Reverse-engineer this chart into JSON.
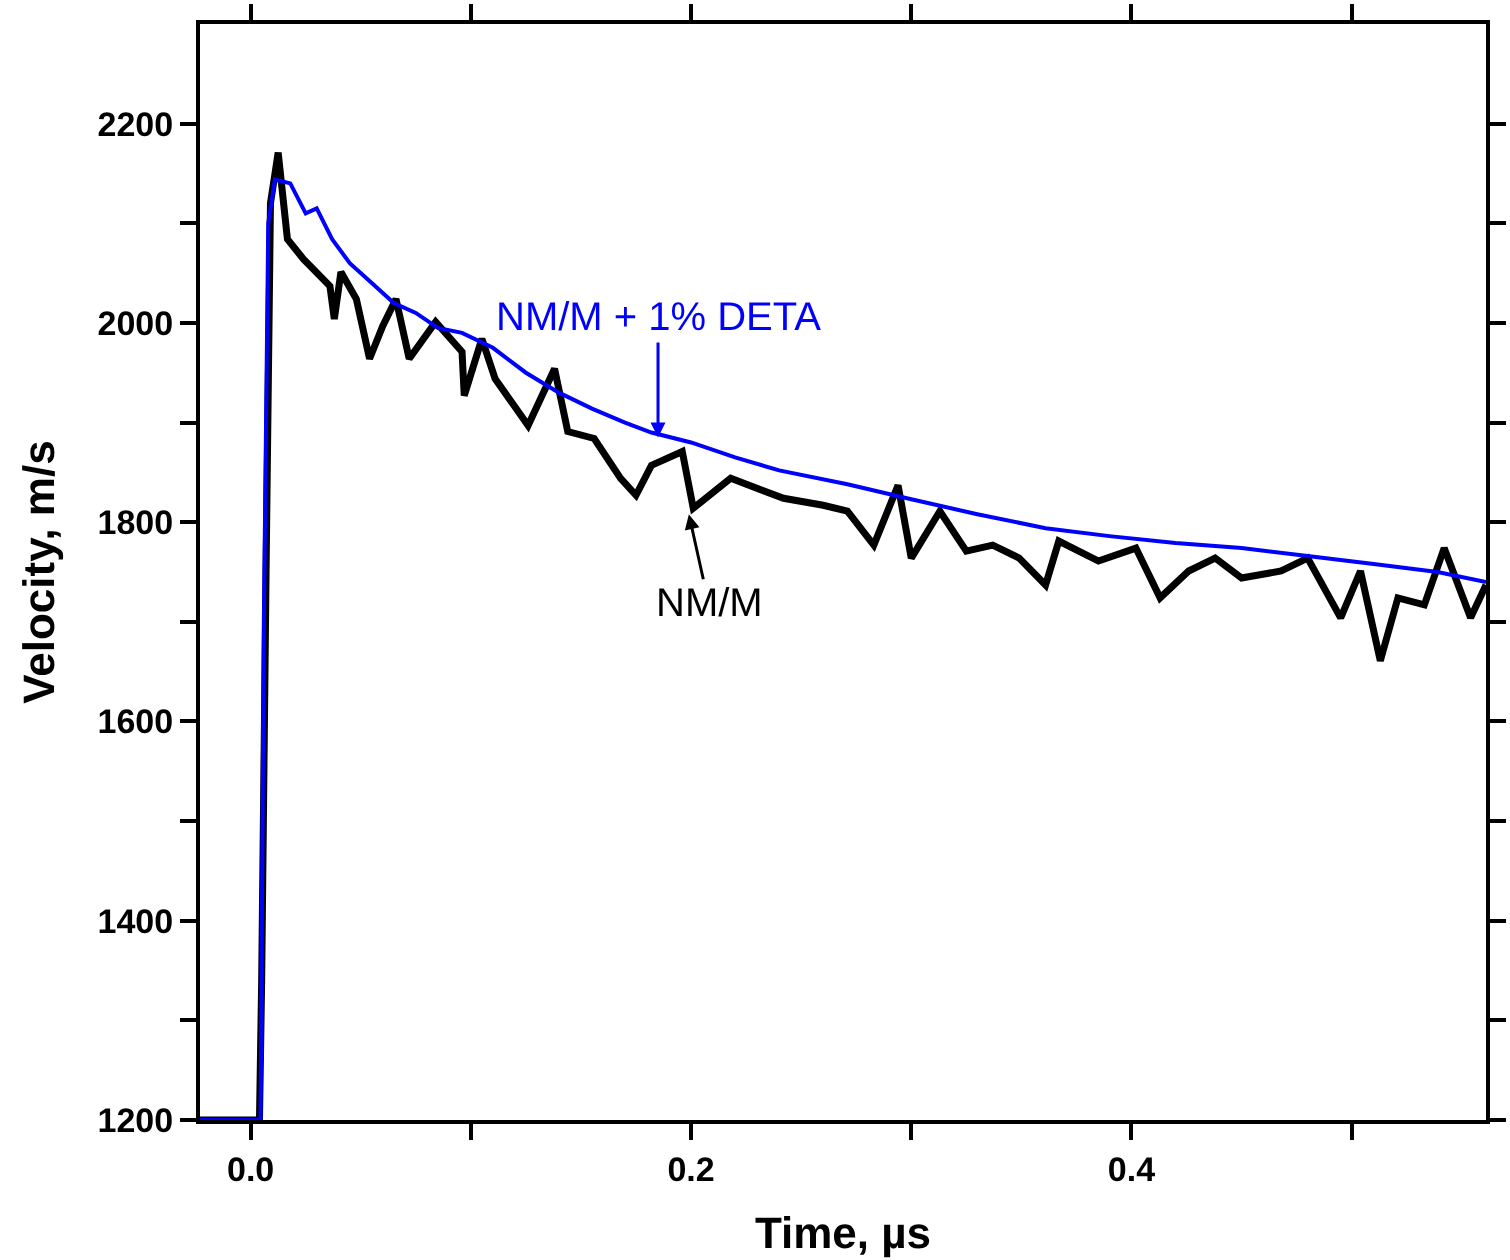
{
  "chart_data": {
    "type": "line",
    "xlabel": "Time, µs",
    "ylabel": "Velocity, m/s",
    "xlim": [
      -0.023,
      0.561
    ],
    "ylim": [
      1200,
      2300
    ],
    "xticks": [
      {
        "value": 0,
        "label": "0.0"
      },
      {
        "value": 0.1,
        "label": null
      },
      {
        "value": 0.2,
        "label": "0.2"
      },
      {
        "value": 0.3,
        "label": null
      },
      {
        "value": 0.4,
        "label": "0.4"
      },
      {
        "value": 0.5,
        "label": null
      }
    ],
    "yticks": [
      1200,
      {
        "value": 1300,
        "label": null
      },
      1400,
      {
        "value": 1500,
        "label": null
      },
      1600,
      {
        "value": 1700,
        "label": null
      },
      1800,
      {
        "value": 1900,
        "label": null
      },
      2000,
      {
        "value": 2100,
        "label": null
      },
      2200
    ],
    "marker": "none",
    "line_style": "solid",
    "series": [
      {
        "color": "#000000",
        "x": [
          -0.023,
          0.004,
          0.005,
          0.007,
          0.009,
          0.0125,
          0.0167,
          0.024,
          0.036,
          0.038,
          0.041,
          0.048,
          0.054,
          0.06,
          0.066,
          0.072,
          0.084,
          0.096,
          0.097,
          0.105,
          0.111,
          0.126,
          0.138,
          0.144,
          0.156,
          0.168,
          0.175,
          0.182,
          0.196,
          0.201,
          0.218,
          0.242,
          0.26,
          0.271,
          0.283,
          0.294,
          0.3,
          0.313,
          0.325,
          0.337,
          0.349,
          0.361,
          0.367,
          0.385,
          0.402,
          0.413,
          0.426,
          0.438,
          0.45,
          0.468,
          0.48,
          0.495,
          0.504,
          0.513,
          0.521,
          0.533,
          0.542,
          0.554,
          0.561
        ],
        "values": [
          1200,
          1200,
          1340,
          1750,
          2120,
          2171,
          2084,
          2064,
          2037,
          2004,
          2051,
          2024,
          1964,
          1997,
          2024,
          1964,
          2001,
          1971,
          1927,
          1984,
          1944,
          1897,
          1954,
          1891,
          1884,
          1844,
          1827,
          1857,
          1871,
          1814,
          1844,
          1824,
          1817,
          1811,
          1777,
          1837,
          1764,
          1811,
          1771,
          1777,
          1764,
          1737,
          1781,
          1761,
          1774,
          1724,
          1751,
          1764,
          1744,
          1751,
          1764,
          1704,
          1751,
          1661,
          1724,
          1717,
          1774,
          1704,
          1737
        ]
      },
      {
        "color": "#0000ff",
        "x": [
          -0.023,
          0.0045,
          0.006,
          0.008,
          0.011,
          0.018,
          0.025,
          0.03,
          0.037,
          0.045,
          0.055,
          0.065,
          0.075,
          0.085,
          0.096,
          0.11,
          0.125,
          0.14,
          0.155,
          0.17,
          0.182,
          0.2,
          0.22,
          0.24,
          0.271,
          0.3,
          0.33,
          0.361,
          0.39,
          0.42,
          0.45,
          0.48,
          0.51,
          0.539,
          0.561
        ],
        "values": [
          1200,
          1200,
          1700,
          2100,
          2144,
          2140,
          2110,
          2115,
          2084,
          2060,
          2040,
          2020,
          2010,
          1995,
          1990,
          1975,
          1950,
          1930,
          1914,
          1900,
          1890,
          1880,
          1865,
          1852,
          1838,
          1823,
          1808,
          1794,
          1786,
          1779,
          1774,
          1766,
          1758,
          1750,
          1740
        ]
      }
    ],
    "annotations": [
      {
        "text": "NM/M",
        "x": 0.199,
        "y": 1808
      },
      {
        "text": "NM/M + 1% DETA",
        "x": 0.185,
        "y": 1885
      }
    ]
  }
}
